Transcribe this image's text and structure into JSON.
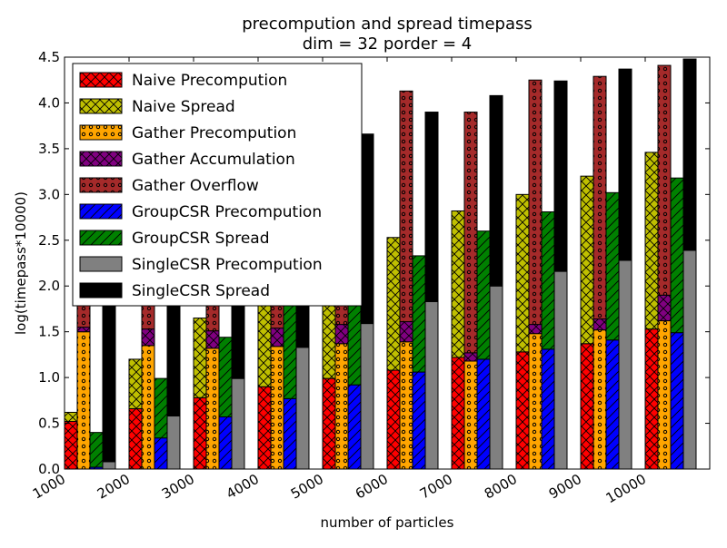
{
  "chart_data": {
    "type": "bar",
    "title": "precompution and spread timepass",
    "subtitle": "dim = 32 porder = 4",
    "xlabel": "number of particles",
    "ylabel": "log(timepass*10000)",
    "ylim": [
      0,
      4.5
    ],
    "yticks": [
      "0.0",
      "0.5",
      "1.0",
      "1.5",
      "2.0",
      "2.5",
      "3.0",
      "3.5",
      "4.0",
      "4.5"
    ],
    "categories": [
      "1000",
      "2000",
      "3000",
      "4000",
      "5000",
      "6000",
      "7000",
      "8000",
      "9000",
      "10000"
    ],
    "legend_position": "upper-left",
    "grid": false,
    "series": [
      {
        "name": "Naive Precompution",
        "color": "#ff0000",
        "hatch": "crossx",
        "values": [
          0.52,
          0.66,
          0.78,
          0.9,
          0.99,
          1.08,
          1.22,
          1.28,
          1.37,
          1.53
        ]
      },
      {
        "name": "Naive Spread",
        "color": "#bfbf00",
        "hatch": "crossx",
        "values": [
          0.1,
          0.54,
          0.87,
          1.08,
          1.18,
          1.45,
          1.6,
          1.72,
          1.83,
          1.93
        ]
      },
      {
        "name": "Gather Precompution",
        "color": "#ffa500",
        "hatch": "dots",
        "values": [
          1.5,
          1.35,
          1.32,
          1.34,
          1.37,
          1.39,
          1.18,
          1.48,
          1.52,
          1.62
        ]
      },
      {
        "name": "Gather Accumulation",
        "color": "#800080",
        "hatch": "crossx",
        "values": [
          0.05,
          0.18,
          0.19,
          0.2,
          0.21,
          0.22,
          0.09,
          0.1,
          0.12,
          0.28
        ]
      },
      {
        "name": "Gather Overflow",
        "color": "#a52a2a",
        "hatch": "dots",
        "values": [
          0.5,
          0.5,
          0.5,
          0.5,
          0.5,
          2.52,
          2.63,
          2.67,
          2.65,
          2.51
        ]
      },
      {
        "name": "GroupCSR Precompution",
        "color": "#0000ff",
        "hatch": "diag",
        "values": [
          0.02,
          0.34,
          0.57,
          0.77,
          0.92,
          1.06,
          1.2,
          1.31,
          1.41,
          1.49
        ]
      },
      {
        "name": "GroupCSR Spread",
        "color": "#008000",
        "hatch": "diag",
        "values": [
          0.38,
          0.65,
          0.87,
          1.1,
          1.2,
          1.27,
          1.4,
          1.5,
          1.61,
          1.69
        ]
      },
      {
        "name": "SingleCSR Precompution",
        "color": "#808080",
        "hatch": "none",
        "values": [
          0.08,
          0.58,
          0.99,
          1.33,
          1.59,
          1.83,
          2.0,
          2.16,
          2.28,
          2.39
        ]
      },
      {
        "name": "SingleCSR Spread",
        "color": "#000000",
        "hatch": "none",
        "values": [
          1.9,
          1.9,
          1.9,
          1.9,
          2.07,
          2.07,
          2.08,
          2.08,
          2.09,
          2.09
        ]
      }
    ],
    "stacks": [
      [
        "Naive Precompution",
        "Naive Spread"
      ],
      [
        "Gather Precompution",
        "Gather Accumulation",
        "Gather Overflow"
      ],
      [
        "GroupCSR Precompution",
        "GroupCSR Spread"
      ],
      [
        "SingleCSR Precompution",
        "SingleCSR Spread"
      ]
    ]
  }
}
